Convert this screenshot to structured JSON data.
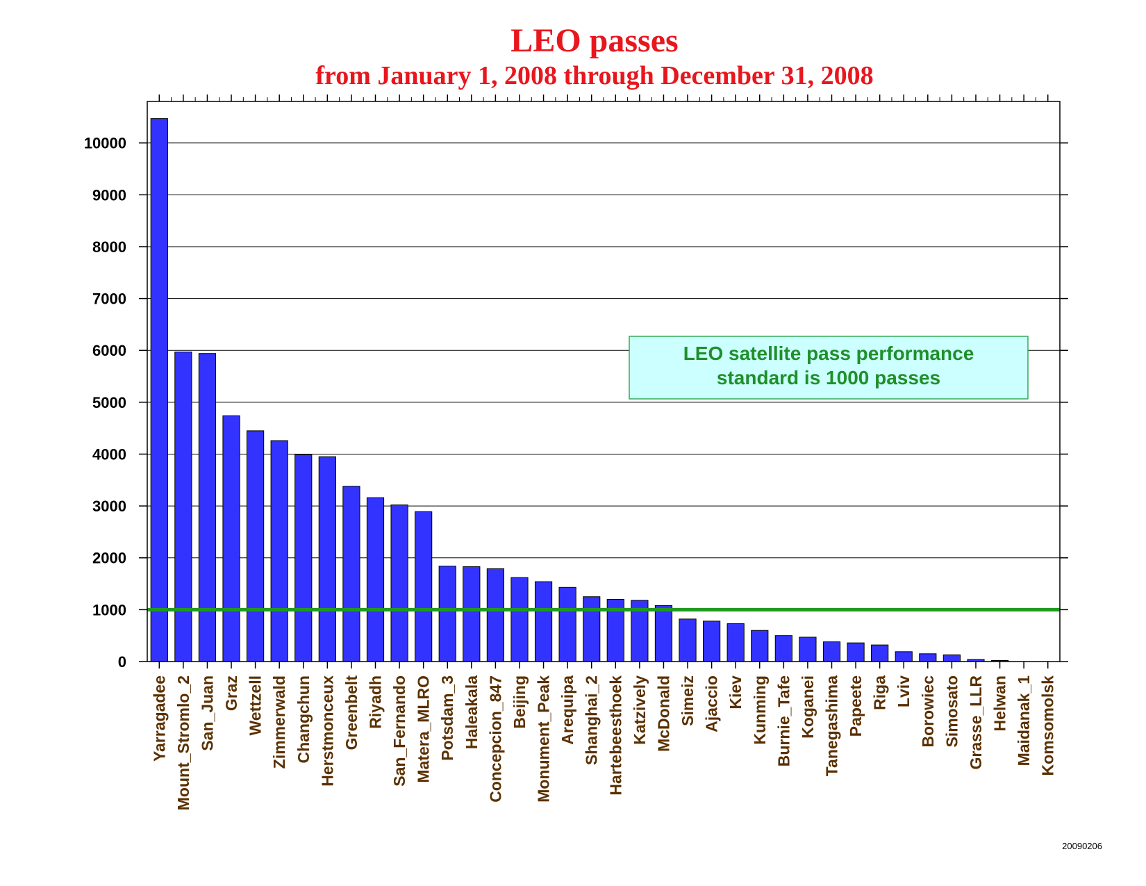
{
  "chart_data": {
    "type": "bar",
    "title": "LEO passes",
    "subtitle": "from January 1, 2008 through December 31, 2008",
    "xlabel": "",
    "ylabel": "",
    "ylim": [
      0,
      10800
    ],
    "yticks": [
      "0",
      "1000",
      "2000",
      "3000",
      "4000",
      "5000",
      "6000",
      "7000",
      "8000",
      "9000",
      "10000"
    ],
    "grid": true,
    "bar_color": "#3333ff",
    "categories": [
      "Yarragadee",
      "Mount_Stromlo_2",
      "San_Juan",
      "Graz",
      "Wettzell",
      "Zimmerwald",
      "Changchun",
      "Herstmonceux",
      "Greenbelt",
      "Riyadh",
      "San_Fernando",
      "Matera_MLRO",
      "Potsdam_3",
      "Haleakala",
      "Concepcion_847",
      "Beijing",
      "Monument_Peak",
      "Arequipa",
      "Shanghai_2",
      "Hartebeesthoek",
      "Katzively",
      "McDonald",
      "Simeiz",
      "Ajaccio",
      "Kiev",
      "Kunming",
      "Burnie_Tafe",
      "Koganei",
      "Tanegashima",
      "Papeete",
      "Riga",
      "Lviv",
      "Borowiec",
      "Simosato",
      "Grasse_LLR",
      "Helwan",
      "Maidanak_1",
      "Komsomolsk"
    ],
    "values": [
      10470,
      5970,
      5940,
      4740,
      4450,
      4260,
      3990,
      3950,
      3380,
      3160,
      3020,
      2890,
      1840,
      1830,
      1790,
      1620,
      1540,
      1430,
      1250,
      1200,
      1180,
      1080,
      820,
      780,
      730,
      600,
      500,
      470,
      380,
      360,
      320,
      190,
      150,
      130,
      40,
      20,
      0,
      0
    ],
    "reference_line": {
      "value": 1000,
      "color": "#1f9a1f"
    },
    "annotation": {
      "lines": [
        "LEO satellite pass performance",
        "standard is 1000 passes"
      ],
      "background": "#ccffff",
      "border": "#33aa55",
      "text_color": "#1f8f2a"
    }
  },
  "footer": {
    "date_code": "20090206"
  }
}
